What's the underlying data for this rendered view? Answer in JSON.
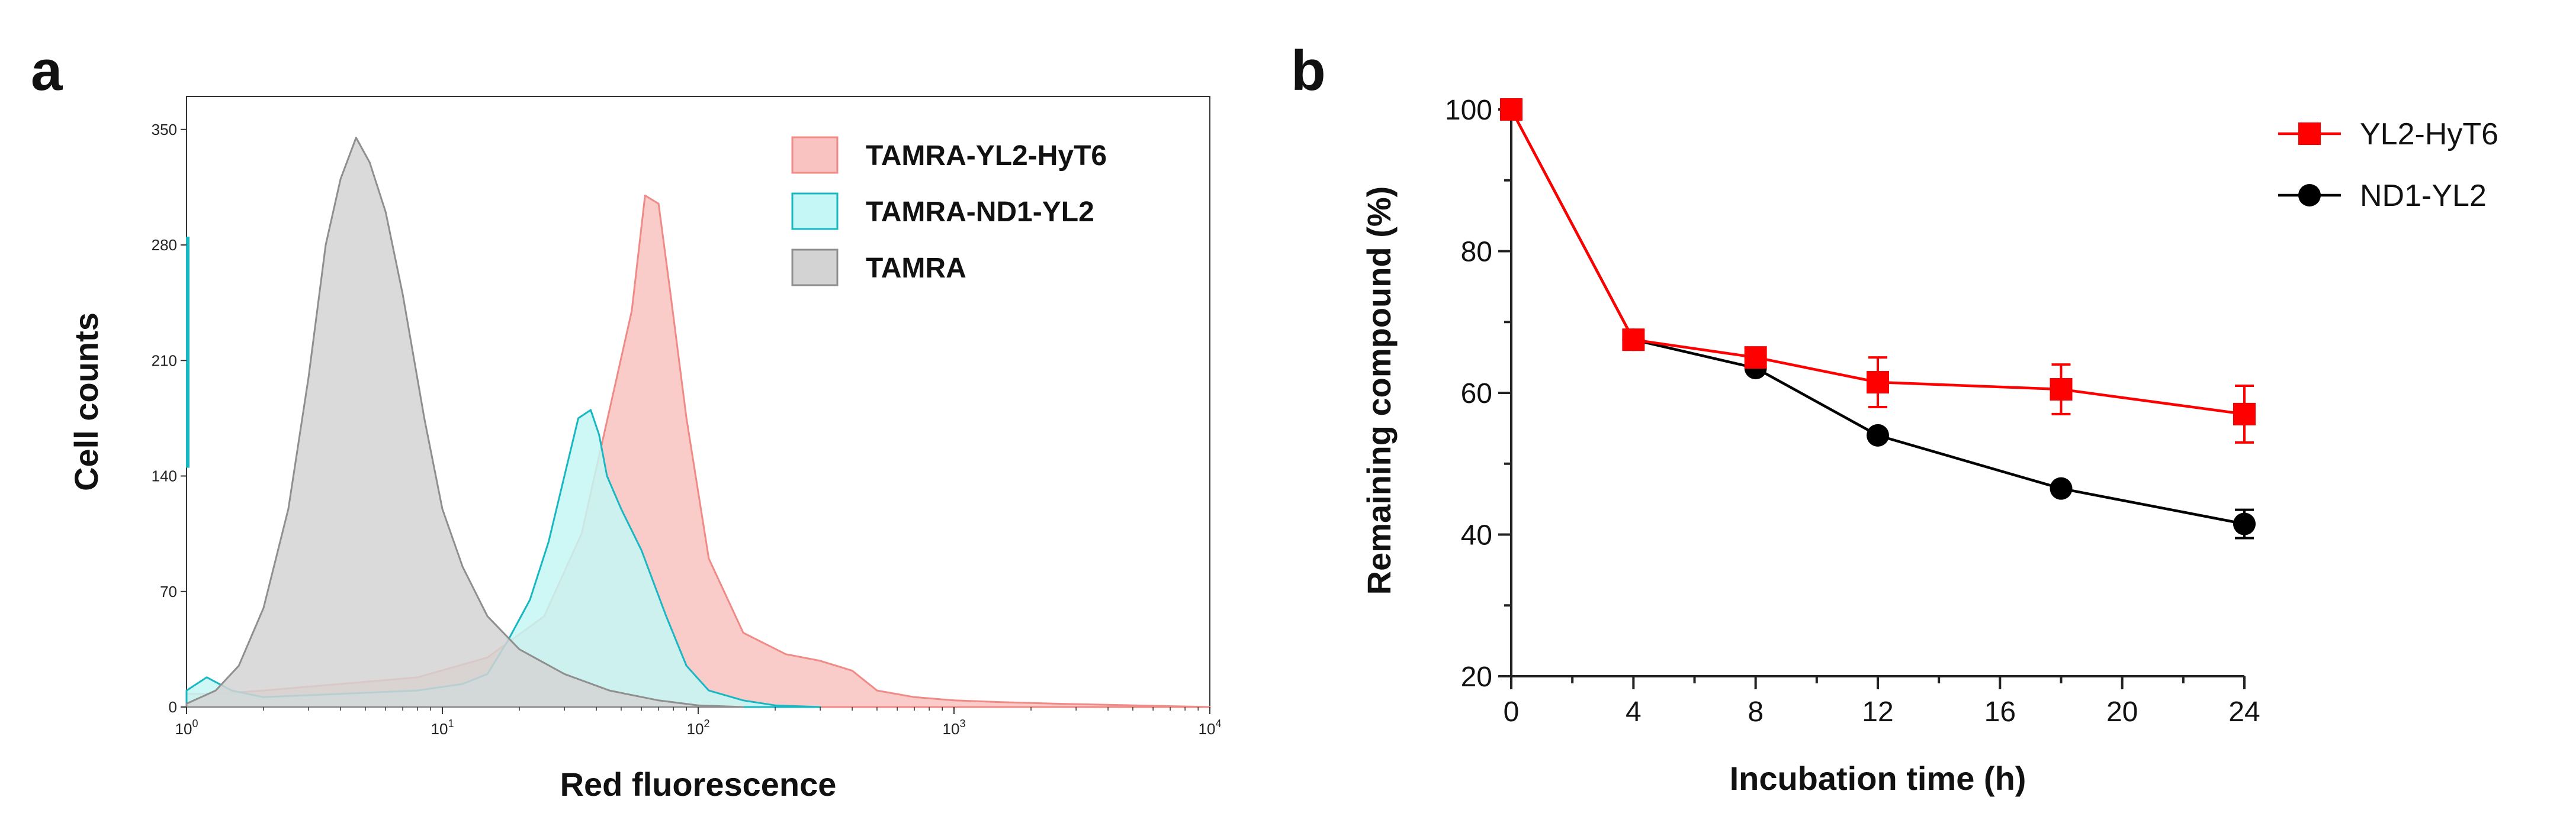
{
  "chart_data": [
    {
      "panel": "a",
      "type": "area",
      "title": "",
      "xlabel": "Red fluorescence",
      "ylabel": "Cell counts",
      "xscale": "log",
      "xlim": [
        1,
        10000
      ],
      "ylim": [
        0,
        370
      ],
      "x_ticks": [
        {
          "base": "10",
          "exp": "0"
        },
        {
          "base": "10",
          "exp": "1"
        },
        {
          "base": "10",
          "exp": "2"
        },
        {
          "base": "10",
          "exp": "3"
        },
        {
          "base": "10",
          "exp": "4"
        }
      ],
      "y_ticks": [
        "0",
        "70",
        "140",
        "210",
        "280",
        "350"
      ],
      "legend_position": "top-right",
      "series": [
        {
          "name": "TAMRA-YL2-HyT6",
          "fill": "#f8c3c1",
          "stroke": "#f08a86",
          "points": [
            [
              1,
              8
            ],
            [
              1.3,
              8
            ],
            [
              2,
              10
            ],
            [
              4,
              14
            ],
            [
              8,
              18
            ],
            [
              15,
              30
            ],
            [
              25,
              55
            ],
            [
              35,
              105
            ],
            [
              45,
              180
            ],
            [
              55,
              240
            ],
            [
              62,
              310
            ],
            [
              70,
              305
            ],
            [
              78,
              250
            ],
            [
              90,
              175
            ],
            [
              110,
              90
            ],
            [
              150,
              45
            ],
            [
              220,
              32
            ],
            [
              300,
              28
            ],
            [
              400,
              22
            ],
            [
              500,
              10
            ],
            [
              700,
              6
            ],
            [
              1000,
              4
            ],
            [
              1500,
              3
            ],
            [
              2500,
              2
            ],
            [
              5000,
              1
            ],
            [
              10000,
              0
            ]
          ]
        },
        {
          "name": "TAMRA-ND1-YL2",
          "fill": "#c4f7f5",
          "stroke": "#19b7c2",
          "points": [
            [
              1,
              10
            ],
            [
              1.2,
              18
            ],
            [
              1.5,
              10
            ],
            [
              2,
              6
            ],
            [
              4,
              8
            ],
            [
              8,
              10
            ],
            [
              12,
              14
            ],
            [
              15,
              20
            ],
            [
              18,
              40
            ],
            [
              22,
              65
            ],
            [
              26,
              100
            ],
            [
              30,
              140
            ],
            [
              34,
              175
            ],
            [
              38,
              180
            ],
            [
              41,
              165
            ],
            [
              44,
              140
            ],
            [
              50,
              120
            ],
            [
              60,
              95
            ],
            [
              75,
              55
            ],
            [
              90,
              25
            ],
            [
              110,
              10
            ],
            [
              150,
              4
            ],
            [
              200,
              1
            ],
            [
              300,
              0
            ]
          ]
        },
        {
          "name": "TAMRA",
          "fill": "#d3d3d3",
          "stroke": "#8f8f8f",
          "points": [
            [
              1,
              2
            ],
            [
              1.3,
              10
            ],
            [
              1.6,
              25
            ],
            [
              2,
              60
            ],
            [
              2.5,
              120
            ],
            [
              3,
              200
            ],
            [
              3.5,
              280
            ],
            [
              4,
              320
            ],
            [
              4.6,
              345
            ],
            [
              5.2,
              330
            ],
            [
              6,
              300
            ],
            [
              7,
              250
            ],
            [
              8.5,
              175
            ],
            [
              10,
              120
            ],
            [
              12,
              85
            ],
            [
              15,
              55
            ],
            [
              20,
              35
            ],
            [
              30,
              20
            ],
            [
              45,
              10
            ],
            [
              70,
              4
            ],
            [
              100,
              1
            ],
            [
              150,
              0
            ]
          ]
        }
      ]
    },
    {
      "panel": "b",
      "type": "line",
      "title": "",
      "xlabel": "Incubation time (h)",
      "ylabel": "Remaining compound (%)",
      "xlim": [
        0,
        24
      ],
      "ylim": [
        20,
        100
      ],
      "x_ticks": [
        0,
        4,
        8,
        12,
        16,
        20,
        24
      ],
      "y_ticks": [
        20,
        40,
        60,
        80,
        100
      ],
      "legend_position": "top-right",
      "series": [
        {
          "name": "YL2-HyT6",
          "color": "#ff0000",
          "marker": "square",
          "x": [
            0,
            4,
            8,
            12,
            18,
            24
          ],
          "values": [
            100,
            67.5,
            65,
            61.5,
            60.5,
            57
          ],
          "errors": [
            0,
            0.5,
            1,
            3.5,
            3.5,
            4
          ]
        },
        {
          "name": "ND1-YL2",
          "color": "#000000",
          "marker": "circle",
          "x": [
            0,
            4,
            8,
            12,
            18,
            24
          ],
          "values": [
            100,
            67.5,
            63.5,
            54,
            46.5,
            41.5
          ],
          "errors": [
            0,
            0,
            0.5,
            0.5,
            0.5,
            2
          ]
        }
      ]
    }
  ]
}
